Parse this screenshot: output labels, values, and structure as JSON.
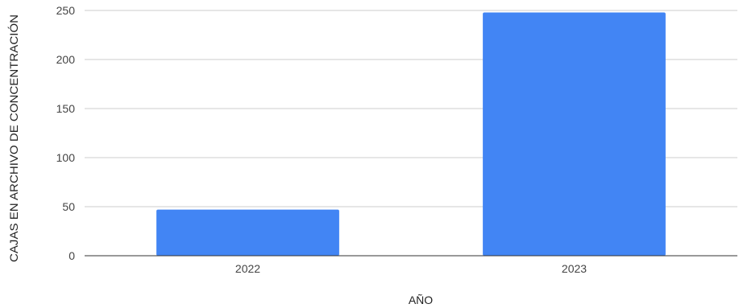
{
  "chart_data": {
    "type": "bar",
    "title": "",
    "xlabel": "AÑO",
    "ylabel": "CAJAS EN ARCHIVO DE CONCENTRACIÓN",
    "categories": [
      "2022",
      "2023"
    ],
    "series": [
      {
        "values": [
          47,
          248
        ],
        "color": "#4285F4"
      }
    ],
    "ylim": [
      0,
      250
    ],
    "yticks": [
      0,
      50,
      100,
      150,
      200,
      250
    ],
    "grid": true,
    "legend": "none"
  }
}
